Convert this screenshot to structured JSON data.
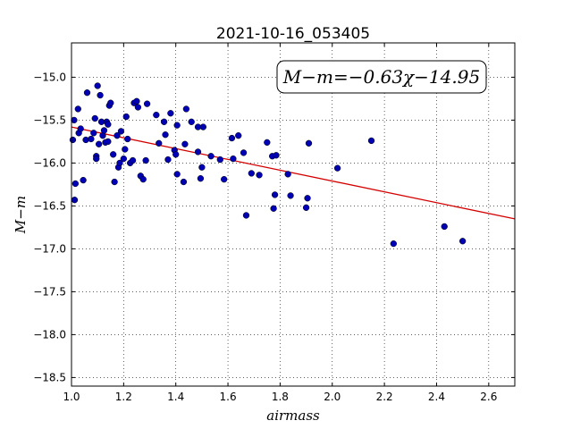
{
  "chart_data": {
    "type": "scatter",
    "title": "2021-10-16_053405",
    "xlabel": "airmass",
    "ylabel": "M−m",
    "xlim": [
      1.0,
      2.7
    ],
    "ylim": [
      -18.6,
      -14.6
    ],
    "x_ticks": [
      1.0,
      1.2,
      1.4,
      1.6,
      1.8,
      2.0,
      2.2,
      2.4,
      2.6
    ],
    "x_tick_labels": [
      "1.0",
      "1.2",
      "1.4",
      "1.6",
      "1.8",
      "2.0",
      "2.2",
      "2.4",
      "2.6"
    ],
    "y_ticks": [
      -15.0,
      -15.5,
      -16.0,
      -16.5,
      -17.0,
      -17.5,
      -18.0,
      -18.5
    ],
    "y_tick_labels": [
      "−15.0",
      "−15.5",
      "−16.0",
      "−16.5",
      "−17.0",
      "−17.5",
      "−18.0",
      "−18.5"
    ],
    "grid": true,
    "annotation": "M−m=−0.63χ−14.95",
    "annotation_position": "top-right",
    "fit_line": {
      "slope": -0.63,
      "intercept": -14.95,
      "color": "#d40000"
    },
    "point_color": "#0000b4",
    "points": [
      [
        1.005,
        -15.73
      ],
      [
        1.01,
        -15.5
      ],
      [
        1.012,
        -16.43
      ],
      [
        1.015,
        -16.24
      ],
      [
        1.025,
        -15.37
      ],
      [
        1.028,
        -15.65
      ],
      [
        1.035,
        -15.6
      ],
      [
        1.045,
        -16.2
      ],
      [
        1.055,
        -15.73
      ],
      [
        1.06,
        -15.18
      ],
      [
        1.075,
        -15.72
      ],
      [
        1.085,
        -15.65
      ],
      [
        1.09,
        -15.48
      ],
      [
        1.095,
        -15.92
      ],
      [
        1.095,
        -15.95
      ],
      [
        1.1,
        -15.1
      ],
      [
        1.105,
        -15.78
      ],
      [
        1.11,
        -15.21
      ],
      [
        1.115,
        -15.52
      ],
      [
        1.12,
        -15.68
      ],
      [
        1.125,
        -15.62
      ],
      [
        1.13,
        -15.76
      ],
      [
        1.135,
        -15.52
      ],
      [
        1.14,
        -15.75
      ],
      [
        1.14,
        -15.55
      ],
      [
        1.145,
        -15.33
      ],
      [
        1.15,
        -15.3
      ],
      [
        1.16,
        -15.9
      ],
      [
        1.165,
        -16.22
      ],
      [
        1.175,
        -15.68
      ],
      [
        1.18,
        -16.05
      ],
      [
        1.185,
        -16.0
      ],
      [
        1.19,
        -15.63
      ],
      [
        1.2,
        -15.95
      ],
      [
        1.205,
        -15.84
      ],
      [
        1.21,
        -15.46
      ],
      [
        1.215,
        -15.72
      ],
      [
        1.225,
        -16.0
      ],
      [
        1.235,
        -15.97
      ],
      [
        1.24,
        -15.3
      ],
      [
        1.25,
        -15.28
      ],
      [
        1.255,
        -15.35
      ],
      [
        1.265,
        -16.15
      ],
      [
        1.275,
        -16.19
      ],
      [
        1.285,
        -15.97
      ],
      [
        1.29,
        -15.31
      ],
      [
        1.325,
        -15.44
      ],
      [
        1.335,
        -15.77
      ],
      [
        1.355,
        -15.52
      ],
      [
        1.36,
        -15.67
      ],
      [
        1.37,
        -15.96
      ],
      [
        1.38,
        -15.42
      ],
      [
        1.395,
        -15.85
      ],
      [
        1.4,
        -15.9
      ],
      [
        1.405,
        -15.56
      ],
      [
        1.405,
        -16.13
      ],
      [
        1.43,
        -16.22
      ],
      [
        1.435,
        -15.78
      ],
      [
        1.44,
        -15.37
      ],
      [
        1.46,
        -15.52
      ],
      [
        1.485,
        -15.58
      ],
      [
        1.485,
        -15.87
      ],
      [
        1.495,
        -16.18
      ],
      [
        1.5,
        -16.05
      ],
      [
        1.505,
        -15.58
      ],
      [
        1.535,
        -15.92
      ],
      [
        1.57,
        -15.96
      ],
      [
        1.585,
        -16.19
      ],
      [
        1.615,
        -15.71
      ],
      [
        1.62,
        -15.95
      ],
      [
        1.64,
        -15.68
      ],
      [
        1.66,
        -15.88
      ],
      [
        1.67,
        -16.61
      ],
      [
        1.69,
        -16.12
      ],
      [
        1.72,
        -16.14
      ],
      [
        1.75,
        -15.76
      ],
      [
        1.77,
        -15.92
      ],
      [
        1.775,
        -16.53
      ],
      [
        1.78,
        -16.37
      ],
      [
        1.785,
        -15.91
      ],
      [
        1.83,
        -16.13
      ],
      [
        1.84,
        -16.38
      ],
      [
        1.9,
        -16.52
      ],
      [
        1.905,
        -16.41
      ],
      [
        1.91,
        -15.77
      ],
      [
        2.02,
        -16.06
      ],
      [
        2.15,
        -15.74
      ],
      [
        2.235,
        -16.94
      ],
      [
        2.43,
        -16.74
      ],
      [
        2.5,
        -16.91
      ]
    ]
  }
}
